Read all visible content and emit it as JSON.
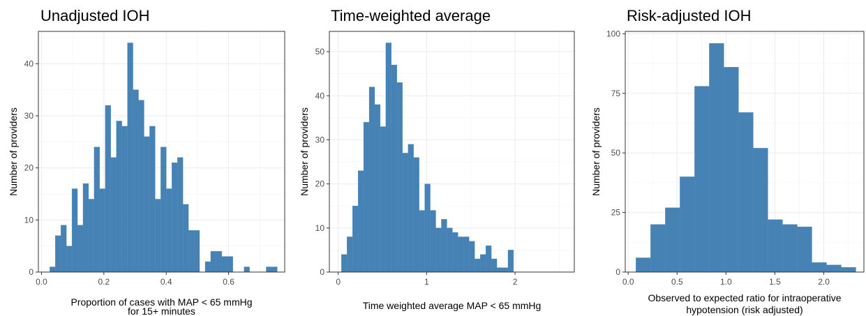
{
  "fill_color": "#4682b4",
  "chart_data": [
    {
      "type": "bar",
      "title": "Unadjusted IOH",
      "xlabel": [
        "Proportion of cases with MAP < 65 mmHg",
        "for 15+ minutes"
      ],
      "ylabel": "Number of providers",
      "xlim": [
        -0.01,
        0.78
      ],
      "ylim": [
        0,
        46.2
      ],
      "xticks": [
        0.0,
        0.2,
        0.4,
        0.6
      ],
      "xtick_labels": [
        "0.0",
        "0.2",
        "0.4",
        "0.6"
      ],
      "yticks": [
        0,
        10,
        20,
        30,
        40
      ],
      "ytick_labels": [
        "0",
        "10",
        "20",
        "30",
        "40"
      ],
      "grid": true,
      "bin_start": 0.0264,
      "bin_width": 0.0178,
      "values": [
        1,
        7,
        9,
        5,
        16,
        9,
        17,
        14,
        24,
        16,
        32,
        22,
        29,
        28,
        44,
        35,
        33,
        26,
        28,
        14,
        24,
        16,
        21,
        22,
        13,
        8,
        8,
        0,
        2,
        4,
        4,
        3,
        3,
        0,
        0,
        1,
        0,
        0,
        0,
        1,
        1
      ]
    },
    {
      "type": "bar",
      "title": "Time-weighted average",
      "xlabel": [
        "Time weighted average MAP < 65 mmHg"
      ],
      "ylabel": "Number of providers",
      "xlim": [
        -0.1,
        2.67
      ],
      "ylim": [
        0,
        54.6
      ],
      "xticks": [
        0,
        1,
        2
      ],
      "xtick_labels": [
        "0",
        "1",
        "2"
      ],
      "yticks": [
        0,
        10,
        20,
        30,
        40,
        50
      ],
      "ytick_labels": [
        "0",
        "10",
        "20",
        "30",
        "40",
        "50"
      ],
      "grid": true,
      "bin_start": 0.036,
      "bin_width": 0.0628,
      "values": [
        4,
        8,
        15,
        23,
        34,
        42,
        38,
        33,
        52,
        47,
        43,
        27,
        29,
        26,
        14,
        20,
        14,
        10,
        12,
        10,
        9,
        8,
        8,
        7,
        3,
        4,
        6,
        3,
        1,
        1,
        5,
        0,
        0,
        0,
        0,
        0,
        0,
        0,
        0,
        0
      ]
    },
    {
      "type": "bar",
      "title": "Risk-adjusted IOH",
      "xlabel": [
        "Observed to expected ratio for intraoperative",
        "hypotension (risk adjusted)"
      ],
      "ylabel": "Number of providers",
      "xlim": [
        -0.03,
        2.41
      ],
      "ylim": [
        0,
        101
      ],
      "xticks": [
        0.0,
        0.5,
        1.0,
        1.5,
        2.0
      ],
      "xtick_labels": [
        "0.0",
        "0.5",
        "1.0",
        "1.5",
        "2.0"
      ],
      "yticks": [
        0,
        25,
        50,
        75,
        100
      ],
      "ytick_labels": [
        "0",
        "25",
        "50",
        "75",
        "100"
      ],
      "grid": true,
      "bin_start": 0.0795,
      "bin_width": 0.1499,
      "values": [
        6,
        20,
        27,
        40,
        78,
        96,
        86,
        67,
        52,
        22,
        20,
        19,
        4,
        3,
        2
      ]
    }
  ]
}
